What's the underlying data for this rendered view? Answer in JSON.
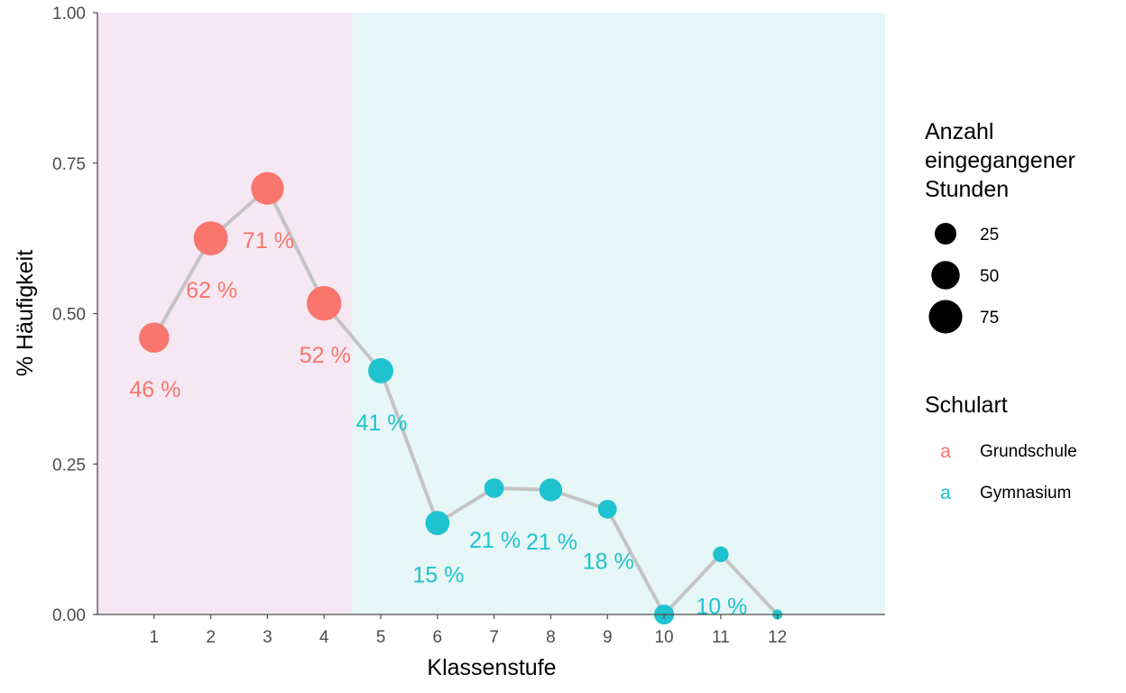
{
  "chart_data": {
    "type": "line",
    "xlabel": "Klassenstufe",
    "ylabel": "% Häufigkeit",
    "xlim": [
      0,
      13.9
    ],
    "ylim": [
      0,
      1
    ],
    "x_ticks": [
      1,
      2,
      3,
      4,
      5,
      6,
      7,
      8,
      9,
      10,
      11,
      12
    ],
    "y_ticks": [
      {
        "value": 0,
        "label": "0.00"
      },
      {
        "value": 0.25,
        "label": "0.25"
      },
      {
        "value": 0.5,
        "label": "0.50"
      },
      {
        "value": 0.75,
        "label": "0.75"
      },
      {
        "value": 1,
        "label": "1.00"
      }
    ],
    "regions": [
      {
        "from": 0,
        "to": 4.5,
        "group": "Grundschule"
      },
      {
        "from": 4.5,
        "to": 13.9,
        "group": "Gymnasium"
      }
    ],
    "line_color": "#c4c4c4",
    "points": [
      {
        "x": 1,
        "y": 0.46,
        "label": "46 %",
        "group": "Grundschule",
        "size": 58
      },
      {
        "x": 2,
        "y": 0.625,
        "label": "62 %",
        "group": "Grundschule",
        "size": 78
      },
      {
        "x": 3,
        "y": 0.708,
        "label": "71 %",
        "group": "Grundschule",
        "size": 71
      },
      {
        "x": 4,
        "y": 0.517,
        "label": "52 %",
        "group": "Grundschule",
        "size": 81
      },
      {
        "x": 5,
        "y": 0.405,
        "label": "41 %",
        "group": "Gymnasium",
        "size": 37
      },
      {
        "x": 6,
        "y": 0.152,
        "label": "15 %",
        "group": "Gymnasium",
        "size": 33
      },
      {
        "x": 7,
        "y": 0.21,
        "label": "21 %",
        "group": "Gymnasium",
        "size": 19
      },
      {
        "x": 8,
        "y": 0.207,
        "label": "21 %",
        "group": "Gymnasium",
        "size": 29
      },
      {
        "x": 9,
        "y": 0.175,
        "label": "18 %",
        "group": "Gymnasium",
        "size": 17
      },
      {
        "x": 10,
        "y": 0.0,
        "label": "",
        "group": "Gymnasium",
        "size": 20
      },
      {
        "x": 11,
        "y": 0.1,
        "label": "10 %",
        "group": "Gymnasium",
        "size": 10
      },
      {
        "x": 12,
        "y": 0.0,
        "label": "",
        "group": "Gymnasium",
        "size": 2
      }
    ],
    "groups": [
      {
        "name": "Grundschule",
        "color": "#f8766d",
        "band_color": "#f5e8f2"
      },
      {
        "name": "Gymnasium",
        "color": "#1fc3cf",
        "band_color": "#e7f6f6"
      }
    ]
  },
  "legend": {
    "size_title": [
      "Anzahl",
      "eingegangener",
      "Stunden"
    ],
    "sizes": [
      {
        "value": 25,
        "label": "25"
      },
      {
        "value": 50,
        "label": "50"
      },
      {
        "value": 75,
        "label": "75"
      }
    ],
    "color_title": "Schulart",
    "colors": [
      {
        "label": "Grundschule",
        "key": "a",
        "color": "#f8766d"
      },
      {
        "label": "Gymnasium",
        "key": "a",
        "color": "#1fc3cf"
      }
    ]
  }
}
